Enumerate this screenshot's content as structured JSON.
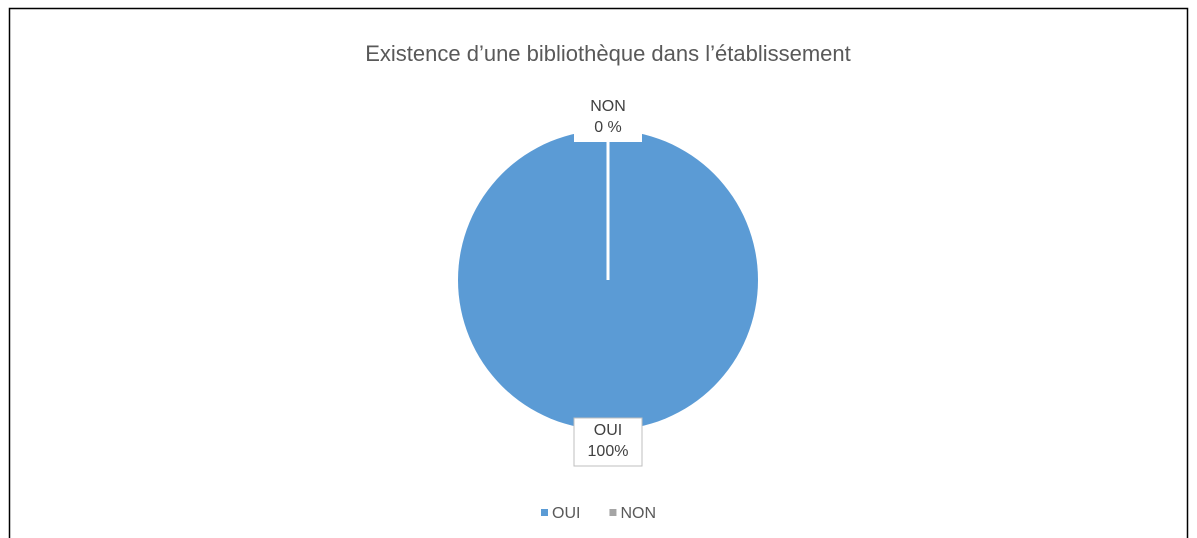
{
  "chart_data": {
    "type": "pie",
    "title": "Existence d’une bibliothèque dans l’établissement",
    "categories": [
      "OUI",
      "NON"
    ],
    "values": [
      100,
      0
    ],
    "value_labels": [
      "100%",
      "0 %"
    ],
    "colors": [
      "#5b9bd5",
      "#a5a5a5"
    ],
    "legend": "bottom"
  }
}
